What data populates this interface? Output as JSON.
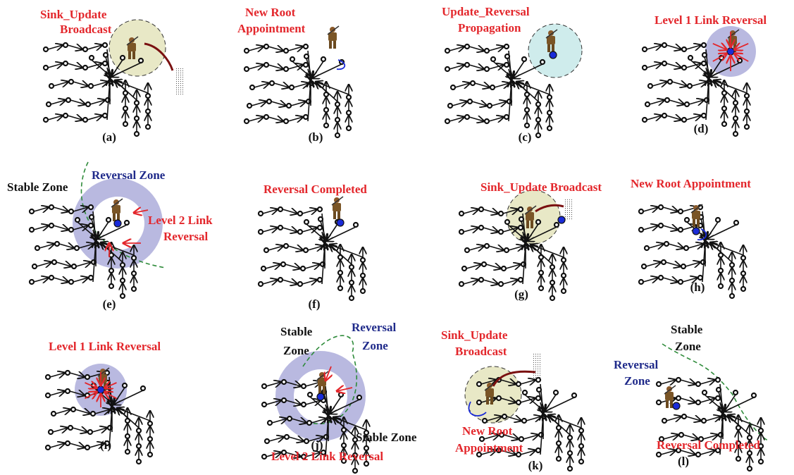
{
  "panels": [
    {
      "id": "a",
      "caption": "(a)",
      "labels": [
        {
          "text": "Sink_Update",
          "color": "red"
        },
        {
          "text": "Broadcast",
          "color": "red"
        }
      ]
    },
    {
      "id": "b",
      "caption": "(b)",
      "labels": [
        {
          "text": "New Root",
          "color": "red"
        },
        {
          "text": "Appointment",
          "color": "red"
        }
      ]
    },
    {
      "id": "c",
      "caption": "(c)",
      "labels": [
        {
          "text": "Update_Reversal",
          "color": "red"
        },
        {
          "text": "Propagation",
          "color": "red"
        }
      ]
    },
    {
      "id": "d",
      "caption": "(d)",
      "labels": [
        {
          "text": "Level 1 Link Reversal",
          "color": "red"
        }
      ]
    },
    {
      "id": "e",
      "caption": "(e)",
      "labels": [
        {
          "text": "Stable Zone",
          "color": "black"
        },
        {
          "text": "Reversal Zone",
          "color": "blue"
        },
        {
          "text": "Level 2 Link",
          "color": "red"
        },
        {
          "text": "Reversal",
          "color": "red"
        }
      ]
    },
    {
      "id": "f",
      "caption": "(f)",
      "labels": [
        {
          "text": "Reversal Completed",
          "color": "red"
        }
      ]
    },
    {
      "id": "g",
      "caption": "(g)",
      "labels": [
        {
          "text": "Sink_Update Broadcast",
          "color": "red"
        }
      ]
    },
    {
      "id": "h",
      "caption": "(h)",
      "labels": [
        {
          "text": "New Root Appointment",
          "color": "red"
        }
      ]
    },
    {
      "id": "i",
      "caption": "(i)",
      "labels": [
        {
          "text": "Level 1 Link Reversal",
          "color": "red"
        }
      ]
    },
    {
      "id": "j",
      "caption": "(j)",
      "labels": [
        {
          "text": "Stable",
          "color": "black"
        },
        {
          "text": "Zone",
          "color": "black"
        },
        {
          "text": "Reversal",
          "color": "blue"
        },
        {
          "text": "Zone",
          "color": "blue"
        },
        {
          "text": "Stable Zone",
          "color": "black"
        },
        {
          "text": "Level 2 Link Reversal",
          "color": "red"
        }
      ]
    },
    {
      "id": "k",
      "caption": "(k)",
      "labels": [
        {
          "text": "Sink_Update",
          "color": "red"
        },
        {
          "text": "Broadcast",
          "color": "red"
        },
        {
          "text": "New Root",
          "color": "red"
        },
        {
          "text": "Appointment",
          "color": "red"
        }
      ]
    },
    {
      "id": "l",
      "caption": "(l)",
      "labels": [
        {
          "text": "Stable",
          "color": "black"
        },
        {
          "text": "Zone",
          "color": "black"
        },
        {
          "text": "Reversal",
          "color": "blue"
        },
        {
          "text": "Zone",
          "color": "blue"
        },
        {
          "text": "Reversal Completed",
          "color": "red"
        }
      ]
    }
  ],
  "colors": {
    "red": "#e3262b",
    "blue": "#1f2a8a",
    "black": "#111111",
    "zone_purple": "#b9b9e0",
    "zone_cyan": "#cfecec",
    "zone_beige": "#e8e8c6",
    "dashed_green": "#2e8b3a",
    "sink_blue": "#1a2bd8"
  },
  "icons": [
    "soldier-icon",
    "sink-node-icon",
    "sensor-node-icon",
    "shaded-obstacle-icon"
  ]
}
